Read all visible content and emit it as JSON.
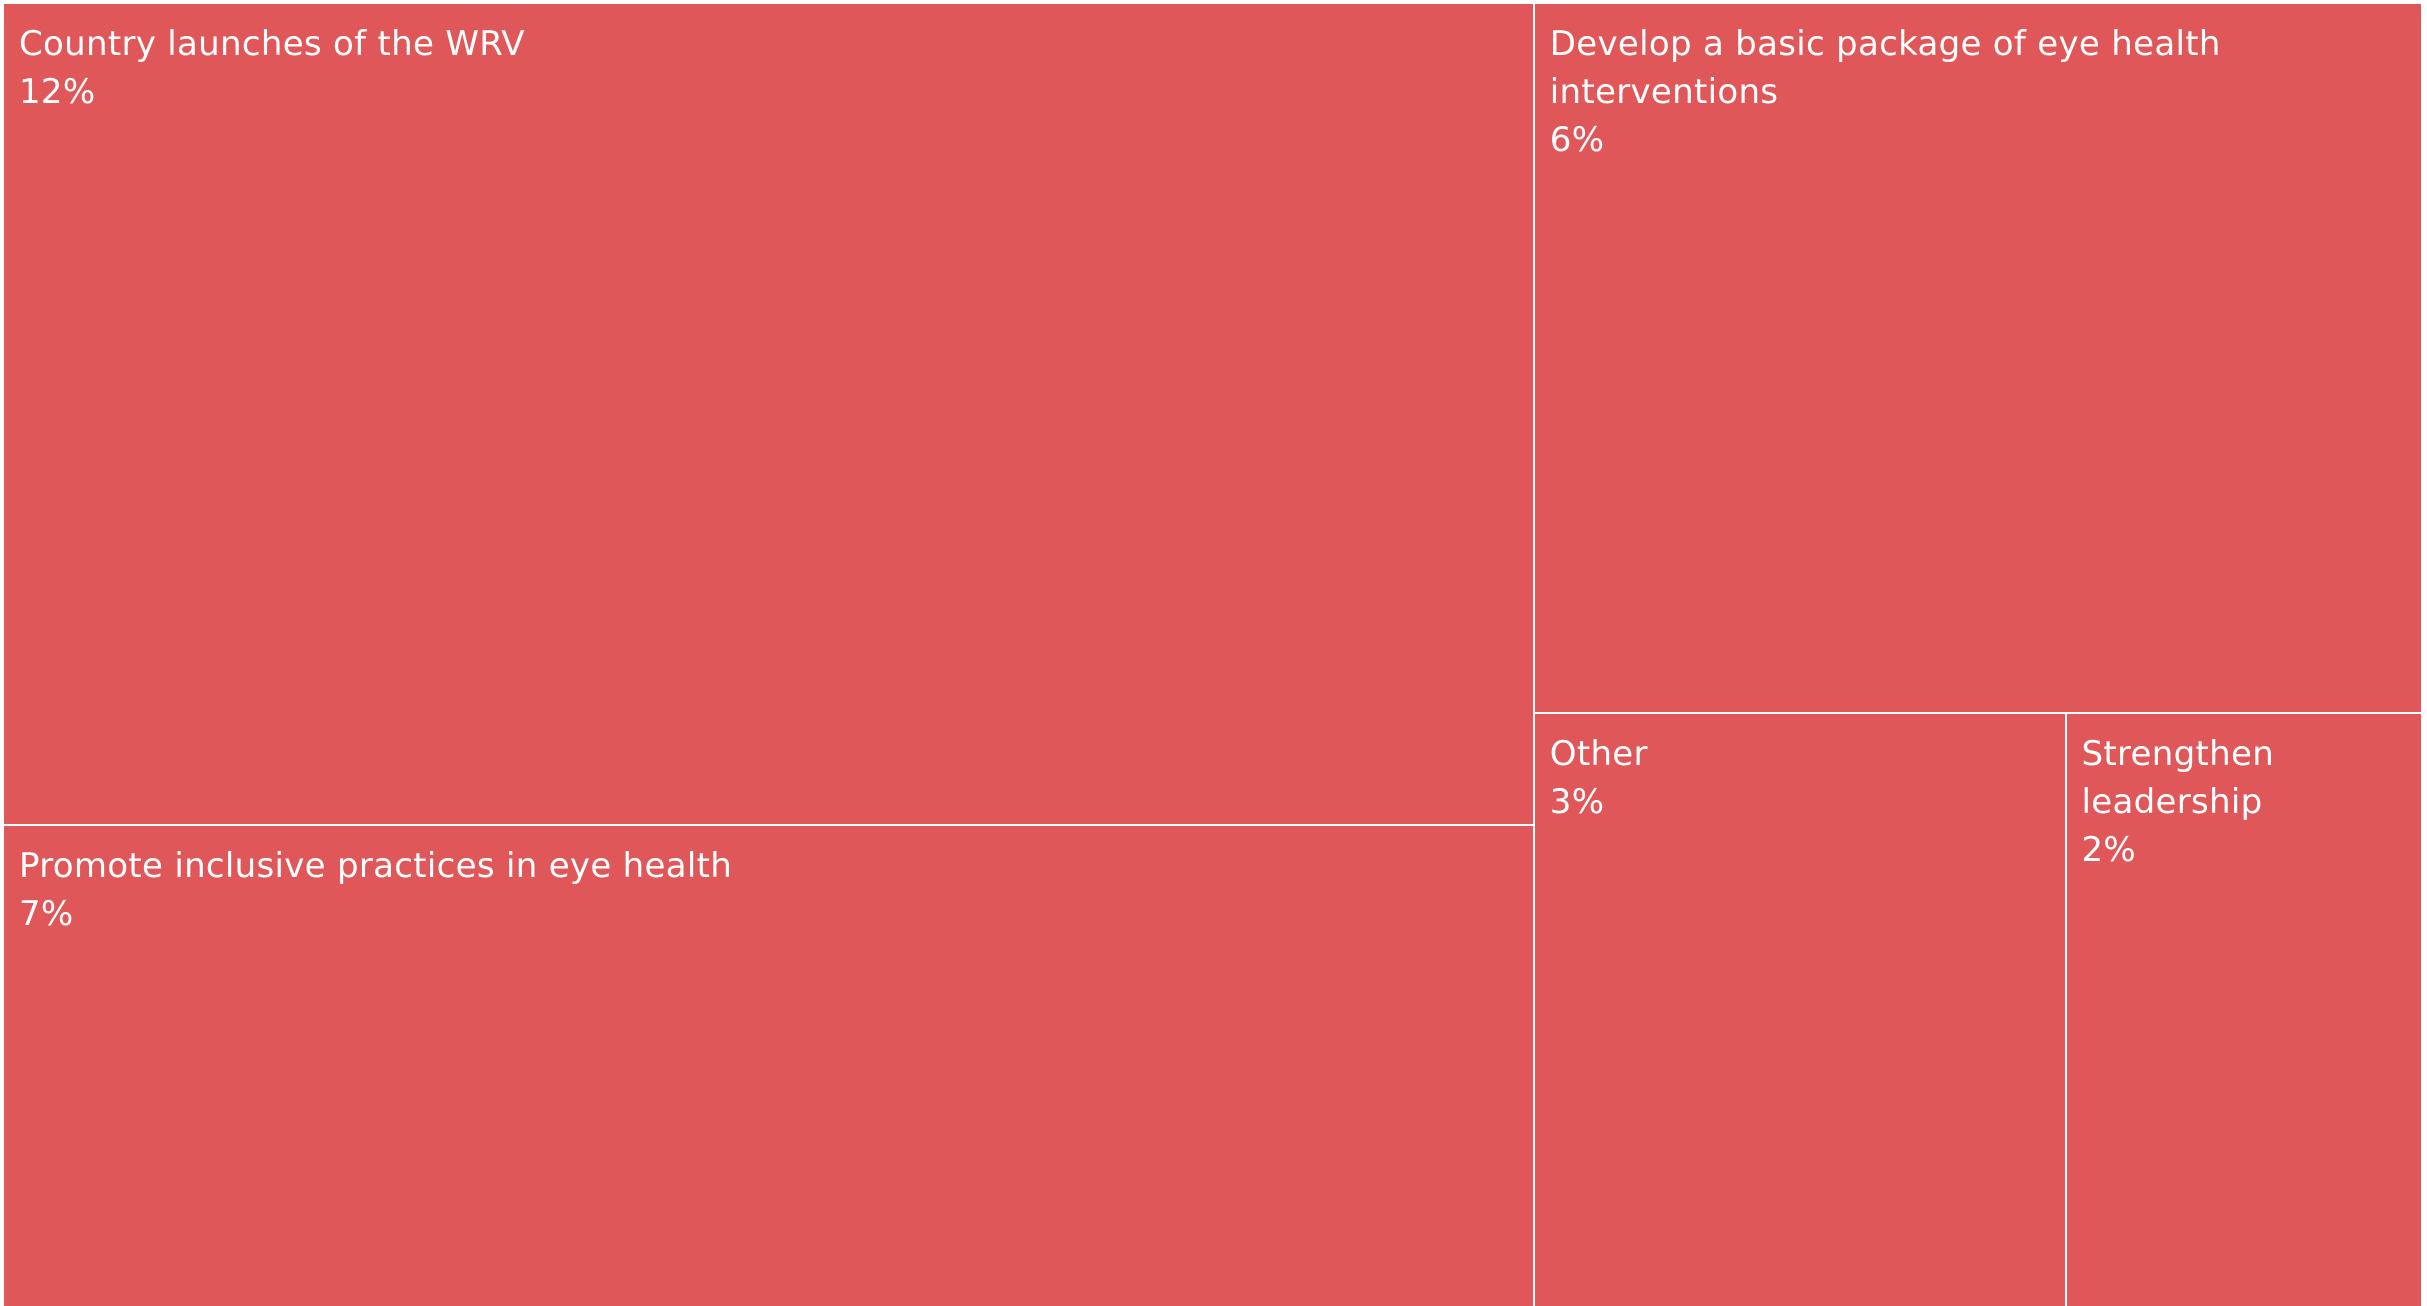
{
  "chart_data": {
    "type": "treemap",
    "color": "#e05759",
    "items": [
      {
        "label": "Country launches of the WRV",
        "value": 12,
        "value_label": "12%"
      },
      {
        "label": "Promote inclusive practices in eye health",
        "value": 7,
        "value_label": "7%"
      },
      {
        "label": "Develop a basic package of eye health interventions",
        "value": 6,
        "value_label": "6%"
      },
      {
        "label": "Other",
        "value": 3,
        "value_label": "3%"
      },
      {
        "label": "Strengthen leadership",
        "value": 2,
        "value_label": "2%"
      }
    ]
  }
}
